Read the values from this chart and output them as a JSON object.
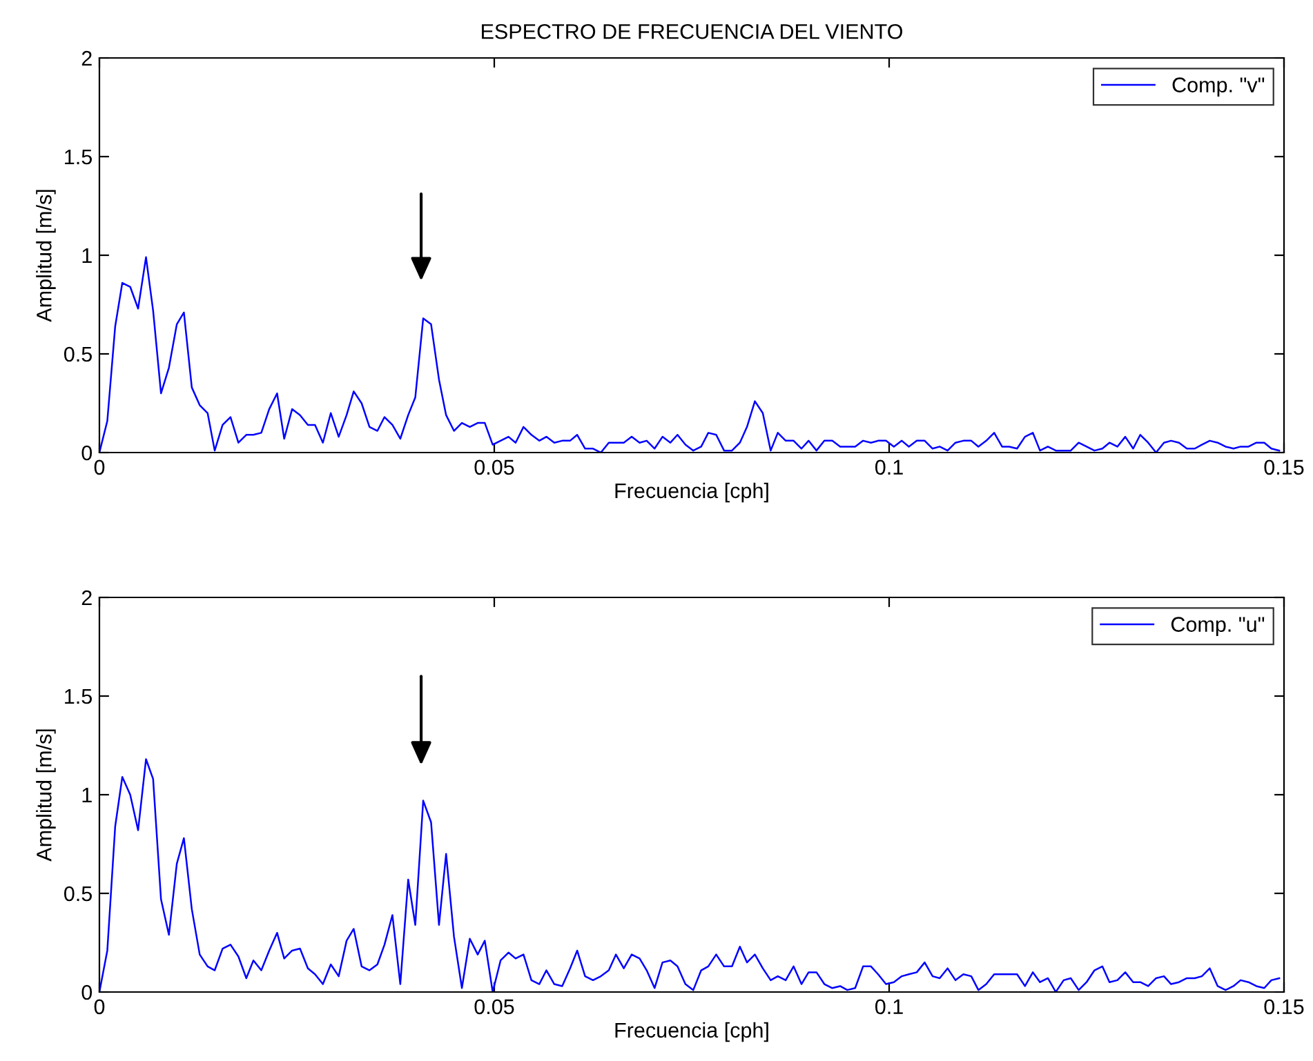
{
  "chart_data": [
    {
      "type": "line",
      "title": "ESPECTRO DE FRECUENCIA DEL VIENTO",
      "xlabel": "Frecuencia [cph]",
      "ylabel": "Amplitud [m/s]",
      "xlim": [
        0,
        0.15
      ],
      "xticks": [
        0,
        0.05,
        0.1,
        0.15
      ],
      "ylim": [
        0,
        2
      ],
      "yticks": [
        0,
        0.5,
        1,
        1.5,
        2
      ],
      "grid": false,
      "legend": "top right",
      "line_style": "solid",
      "marker": "none",
      "x": [
        0,
        0.001,
        0.002,
        0.0029,
        0.0039,
        0.0049,
        0.0059,
        0.0068,
        0.0078,
        0.0088,
        0.0098,
        0.0107,
        0.0117,
        0.0127,
        0.0137,
        0.0146,
        0.0156,
        0.0166,
        0.0176,
        0.0186,
        0.0195,
        0.0205,
        0.0215,
        0.0225,
        0.0234,
        0.0244,
        0.0254,
        0.0264,
        0.0273,
        0.0283,
        0.0293,
        0.0303,
        0.0313,
        0.0322,
        0.0332,
        0.0342,
        0.0352,
        0.0361,
        0.0371,
        0.0381,
        0.0391,
        0.04,
        0.041,
        0.042,
        0.043,
        0.0439,
        0.0449,
        0.0459,
        0.0469,
        0.0479,
        0.0488,
        0.0498,
        0.0508,
        0.0518,
        0.0527,
        0.0537,
        0.0547,
        0.0557,
        0.0566,
        0.0576,
        0.0586,
        0.0596,
        0.0605,
        0.0615,
        0.0625,
        0.0635,
        0.0645,
        0.0654,
        0.0664,
        0.0674,
        0.0684,
        0.0693,
        0.0703,
        0.0713,
        0.0723,
        0.0732,
        0.0742,
        0.0752,
        0.0762,
        0.0771,
        0.0781,
        0.0791,
        0.0801,
        0.0811,
        0.082,
        0.083,
        0.084,
        0.085,
        0.0859,
        0.0869,
        0.0879,
        0.0889,
        0.0898,
        0.0908,
        0.0918,
        0.0928,
        0.0938,
        0.0947,
        0.0957,
        0.0967,
        0.0977,
        0.0986,
        0.0996,
        0.1006,
        0.1016,
        0.1025,
        0.1035,
        0.1045,
        0.1055,
        0.1064,
        0.1074,
        0.1084,
        0.1094,
        0.1104,
        0.1113,
        0.1123,
        0.1133,
        0.1143,
        0.1152,
        0.1162,
        0.1172,
        0.1182,
        0.1191,
        0.1201,
        0.1211,
        0.1221,
        0.123,
        0.124,
        0.125,
        0.126,
        0.127,
        0.1279,
        0.1289,
        0.1299,
        0.1309,
        0.1318,
        0.1328,
        0.1338,
        0.1348,
        0.1357,
        0.1367,
        0.1377,
        0.1387,
        0.1396,
        0.1406,
        0.1416,
        0.1426,
        0.1436,
        0.1445,
        0.1455,
        0.1465,
        0.1475,
        0.1484,
        0.1494
      ],
      "series": [
        {
          "name": "Comp. \"v\"",
          "color": "#0000ff",
          "values": [
            0,
            0.16,
            0.64,
            0.86,
            0.84,
            0.73,
            0.99,
            0.72,
            0.3,
            0.43,
            0.65,
            0.71,
            0.33,
            0.24,
            0.2,
            0.01,
            0.14,
            0.18,
            0.05,
            0.09,
            0.09,
            0.1,
            0.22,
            0.3,
            0.07,
            0.22,
            0.19,
            0.14,
            0.14,
            0.05,
            0.2,
            0.08,
            0.19,
            0.31,
            0.25,
            0.13,
            0.11,
            0.18,
            0.14,
            0.07,
            0.19,
            0.28,
            0.68,
            0.65,
            0.37,
            0.19,
            0.11,
            0.15,
            0.13,
            0.15,
            0.15,
            0.04,
            0.06,
            0.08,
            0.05,
            0.13,
            0.09,
            0.06,
            0.08,
            0.05,
            0.06,
            0.06,
            0.09,
            0.02,
            0.02,
            0.0,
            0.05,
            0.05,
            0.05,
            0.08,
            0.05,
            0.06,
            0.02,
            0.08,
            0.05,
            0.09,
            0.04,
            0.01,
            0.03,
            0.1,
            0.09,
            0.01,
            0.01,
            0.05,
            0.13,
            0.26,
            0.2,
            0.01,
            0.1,
            0.06,
            0.06,
            0.02,
            0.06,
            0.01,
            0.06,
            0.06,
            0.03,
            0.03,
            0.03,
            0.06,
            0.05,
            0.06,
            0.06,
            0.03,
            0.06,
            0.03,
            0.06,
            0.06,
            0.02,
            0.03,
            0.01,
            0.05,
            0.06,
            0.06,
            0.03,
            0.06,
            0.1,
            0.03,
            0.03,
            0.02,
            0.08,
            0.1,
            0.01,
            0.03,
            0.01,
            0.01,
            0.01,
            0.05,
            0.03,
            0.01,
            0.02,
            0.05,
            0.03,
            0.08,
            0.02,
            0.09,
            0.05,
            0.0,
            0.05,
            0.06,
            0.05,
            0.02,
            0.02,
            0.04,
            0.06,
            0.05,
            0.03,
            0.02,
            0.03,
            0.03,
            0.05,
            0.05,
            0.02,
            0.01
          ]
        }
      ]
    },
    {
      "type": "line",
      "xlabel": "Frecuencia [cph]",
      "ylabel": "Amplitud [m/s]",
      "xlim": [
        0,
        0.15
      ],
      "xticks": [
        0,
        0.05,
        0.1,
        0.15
      ],
      "ylim": [
        0,
        2
      ],
      "yticks": [
        0,
        0.5,
        1,
        1.5,
        2
      ],
      "grid": false,
      "legend": "top right",
      "line_style": "solid",
      "marker": "none",
      "x": [
        0,
        0.001,
        0.002,
        0.0029,
        0.0039,
        0.0049,
        0.0059,
        0.0068,
        0.0078,
        0.0088,
        0.0098,
        0.0107,
        0.0117,
        0.0127,
        0.0137,
        0.0146,
        0.0156,
        0.0166,
        0.0176,
        0.0186,
        0.0195,
        0.0205,
        0.0215,
        0.0225,
        0.0234,
        0.0244,
        0.0254,
        0.0264,
        0.0273,
        0.0283,
        0.0293,
        0.0303,
        0.0313,
        0.0322,
        0.0332,
        0.0342,
        0.0352,
        0.0361,
        0.0371,
        0.0381,
        0.0391,
        0.04,
        0.041,
        0.042,
        0.043,
        0.0439,
        0.0449,
        0.0459,
        0.0469,
        0.0479,
        0.0488,
        0.0498,
        0.0508,
        0.0518,
        0.0527,
        0.0537,
        0.0547,
        0.0557,
        0.0566,
        0.0576,
        0.0586,
        0.0596,
        0.0605,
        0.0615,
        0.0625,
        0.0635,
        0.0645,
        0.0654,
        0.0664,
        0.0674,
        0.0684,
        0.0693,
        0.0703,
        0.0713,
        0.0723,
        0.0732,
        0.0742,
        0.0752,
        0.0762,
        0.0771,
        0.0781,
        0.0791,
        0.0801,
        0.0811,
        0.082,
        0.083,
        0.084,
        0.085,
        0.0859,
        0.0869,
        0.0879,
        0.0889,
        0.0898,
        0.0908,
        0.0918,
        0.0928,
        0.0938,
        0.0947,
        0.0957,
        0.0967,
        0.0977,
        0.0986,
        0.0996,
        0.1006,
        0.1016,
        0.1025,
        0.1035,
        0.1045,
        0.1055,
        0.1064,
        0.1074,
        0.1084,
        0.1094,
        0.1104,
        0.1113,
        0.1123,
        0.1133,
        0.1143,
        0.1152,
        0.1162,
        0.1172,
        0.1182,
        0.1191,
        0.1201,
        0.1211,
        0.1221,
        0.123,
        0.124,
        0.125,
        0.126,
        0.127,
        0.1279,
        0.1289,
        0.1299,
        0.1309,
        0.1318,
        0.1328,
        0.1338,
        0.1348,
        0.1357,
        0.1367,
        0.1377,
        0.1387,
        0.1396,
        0.1406,
        0.1416,
        0.1426,
        0.1436,
        0.1445,
        0.1455,
        0.1465,
        0.1475,
        0.1484,
        0.1494
      ],
      "series": [
        {
          "name": "Comp. \"u\"",
          "color": "#0000ff",
          "values": [
            0,
            0.21,
            0.84,
            1.09,
            1.0,
            0.82,
            1.18,
            1.08,
            0.47,
            0.29,
            0.65,
            0.78,
            0.42,
            0.19,
            0.13,
            0.11,
            0.22,
            0.24,
            0.18,
            0.07,
            0.16,
            0.11,
            0.21,
            0.3,
            0.17,
            0.21,
            0.22,
            0.12,
            0.09,
            0.04,
            0.14,
            0.08,
            0.26,
            0.32,
            0.13,
            0.11,
            0.14,
            0.24,
            0.39,
            0.04,
            0.57,
            0.34,
            0.97,
            0.86,
            0.34,
            0.7,
            0.28,
            0.02,
            0.27,
            0.19,
            0.26,
            0.0,
            0.16,
            0.2,
            0.17,
            0.19,
            0.06,
            0.04,
            0.11,
            0.04,
            0.03,
            0.12,
            0.21,
            0.08,
            0.06,
            0.08,
            0.11,
            0.19,
            0.12,
            0.19,
            0.17,
            0.11,
            0.02,
            0.15,
            0.16,
            0.13,
            0.04,
            0.01,
            0.11,
            0.13,
            0.19,
            0.13,
            0.13,
            0.23,
            0.15,
            0.19,
            0.12,
            0.06,
            0.08,
            0.06,
            0.13,
            0.04,
            0.1,
            0.1,
            0.04,
            0.02,
            0.03,
            0.01,
            0.02,
            0.13,
            0.13,
            0.09,
            0.04,
            0.05,
            0.08,
            0.09,
            0.1,
            0.15,
            0.08,
            0.07,
            0.12,
            0.06,
            0.09,
            0.08,
            0.01,
            0.04,
            0.09,
            0.09,
            0.09,
            0.09,
            0.03,
            0.1,
            0.05,
            0.07,
            0.0,
            0.06,
            0.07,
            0.01,
            0.05,
            0.11,
            0.13,
            0.05,
            0.06,
            0.1,
            0.05,
            0.05,
            0.03,
            0.07,
            0.08,
            0.04,
            0.05,
            0.07,
            0.07,
            0.08,
            0.12,
            0.03,
            0.01,
            0.03,
            0.06,
            0.05,
            0.03,
            0.02,
            0.06,
            0.07
          ]
        }
      ]
    }
  ]
}
